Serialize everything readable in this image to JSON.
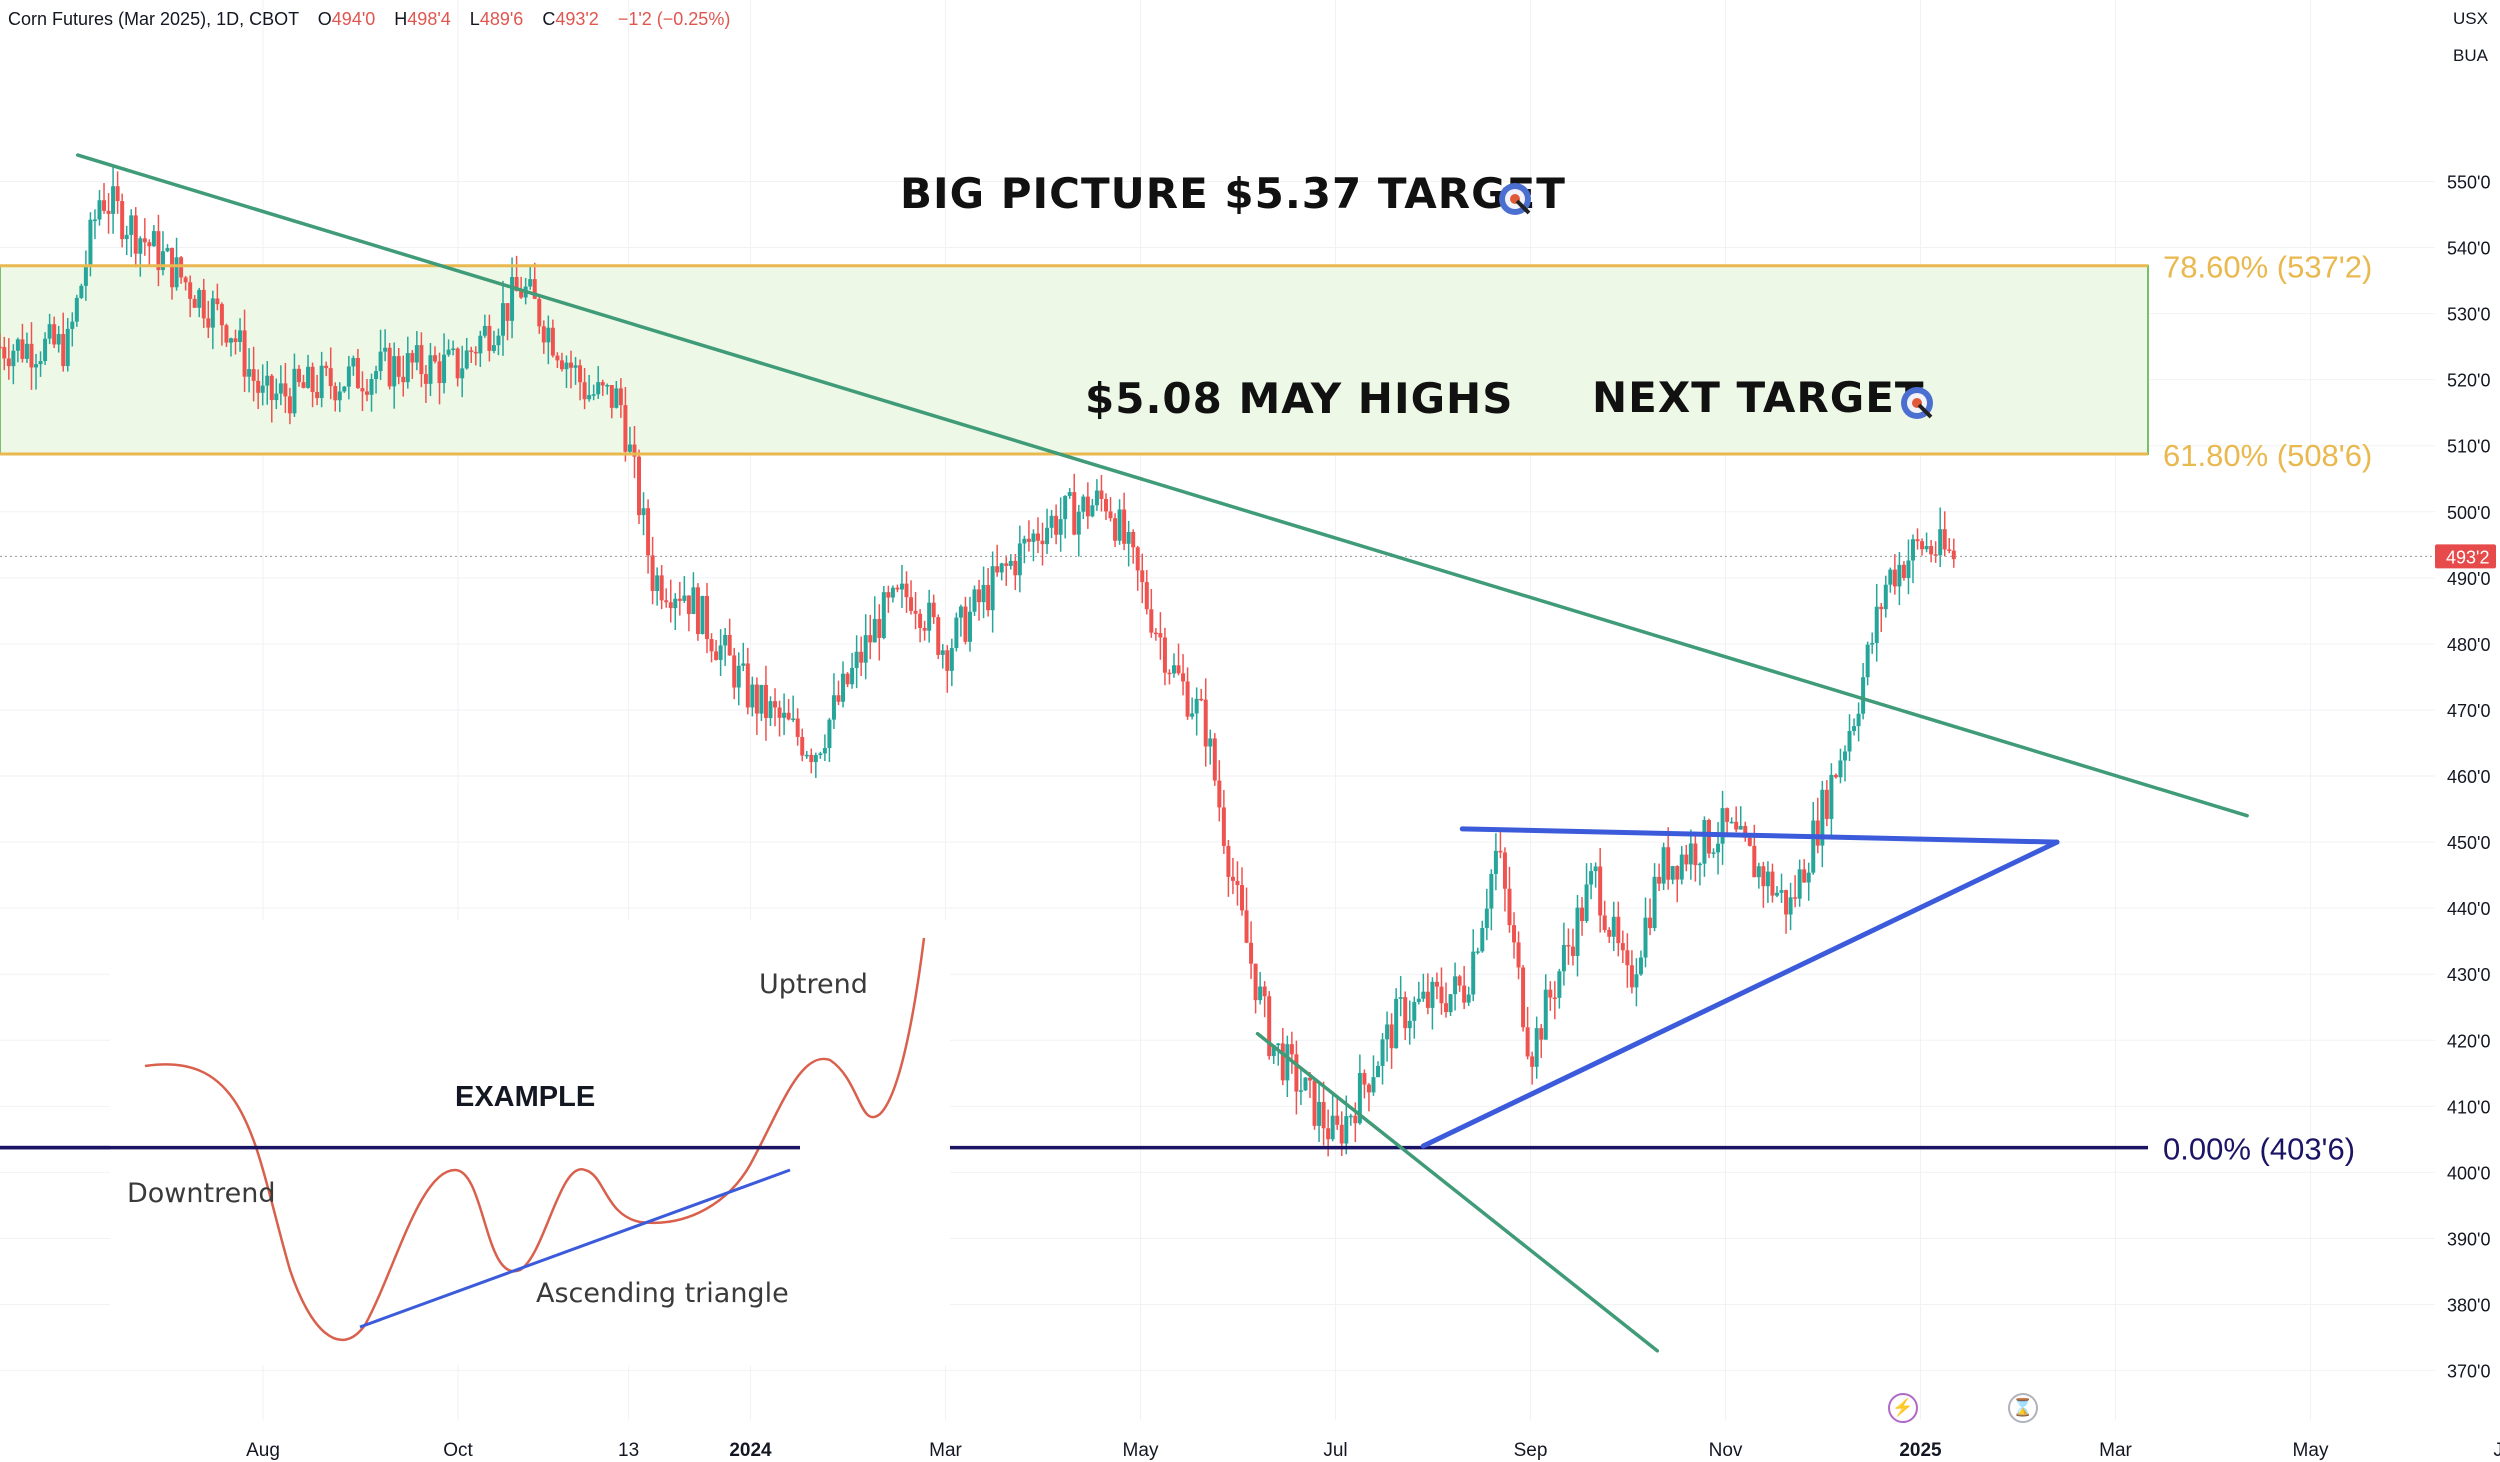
{
  "legend": {
    "symbol": "Corn Futures (Mar 2025), 1D, CBOT",
    "open_key": "O",
    "open": "494'0",
    "high_key": "H",
    "high": "498'4",
    "low_key": "L",
    "low": "489'6",
    "close_key": "C",
    "close": "493'2",
    "change": "−1'2 (−0.25%)"
  },
  "axis_units": [
    "USX",
    "BUA"
  ],
  "last_price_label": "493'2",
  "colors": {
    "up": "#26a69a",
    "down": "#ef5350",
    "trendline": "#3f9b78",
    "triangle": "#3b5bdb",
    "fib_gold": "#e9b84f",
    "fib_zero": "#1b1464",
    "zone_fill": "#eef8e6",
    "zone_border": "#7bbf6a",
    "example_curve": "#d9604c"
  },
  "chart_data": {
    "type": "candlestick",
    "y_axis": {
      "min": 366,
      "max": 573,
      "ticks": [
        "370'0",
        "380'0",
        "390'0",
        "400'0",
        "410'0",
        "420'0",
        "430'0",
        "440'0",
        "450'0",
        "460'0",
        "470'0",
        "480'0",
        "490'0",
        "500'0",
        "510'0",
        "520'0",
        "530'0",
        "540'0",
        "550'0"
      ]
    },
    "x_axis": {
      "ticks": [
        "Aug",
        "Oct",
        "13",
        "2024",
        "Mar",
        "May",
        "Jul",
        "Sep",
        "Nov",
        "2025",
        "Mar",
        "May",
        "Jul"
      ],
      "bold_ticks": [
        "2024",
        "2025"
      ]
    },
    "price_path": [
      {
        "t": "Jul 2023",
        "v": 525
      },
      {
        "t": "Jul 2023",
        "v": 548
      },
      {
        "t": "Aug 2023",
        "v": 528
      },
      {
        "t": "Sep 2023",
        "v": 517
      },
      {
        "t": "Oct 2023",
        "v": 522
      },
      {
        "t": "Nov 2023",
        "v": 534
      },
      {
        "t": "Nov 2023",
        "v": 522
      },
      {
        "t": "Dec 2023",
        "v": 518
      },
      {
        "t": "Dec 2023",
        "v": 517
      },
      {
        "t": "Jan 2024",
        "v": 490
      },
      {
        "t": "Jan 2024",
        "v": 488
      },
      {
        "t": "Feb 2024",
        "v": 464
      },
      {
        "t": "Feb 2024",
        "v": 472
      },
      {
        "t": "Mar 2024",
        "v": 484
      },
      {
        "t": "Mar 2024",
        "v": 488
      },
      {
        "t": "Apr 2024",
        "v": 479
      },
      {
        "t": "Apr 2024",
        "v": 486
      },
      {
        "t": "May 2024",
        "v": 502
      },
      {
        "t": "May 2024",
        "v": 498
      },
      {
        "t": "Jun 2024",
        "v": 476
      },
      {
        "t": "Jun 2024",
        "v": 468
      },
      {
        "t": "Jul 2024",
        "v": 440
      },
      {
        "t": "Jul 2024",
        "v": 420
      },
      {
        "t": "Aug 2024",
        "v": 424
      },
      {
        "t": "Aug 2024",
        "v": 405
      },
      {
        "t": "Sep 2024",
        "v": 428
      },
      {
        "t": "Sep 2024",
        "v": 449
      },
      {
        "t": "Oct 2024",
        "v": 418
      },
      {
        "t": "Oct 2024",
        "v": 432
      },
      {
        "t": "Oct 2024",
        "v": 445
      },
      {
        "t": "Nov 2024",
        "v": 428
      },
      {
        "t": "Nov 2024",
        "v": 446
      },
      {
        "t": "Dec 2024",
        "v": 440
      },
      {
        "t": "Dec 2024",
        "v": 452
      },
      {
        "t": "Jan 2025",
        "v": 470
      },
      {
        "t": "Jan 2025",
        "v": 490
      },
      {
        "t": "Feb 2025",
        "v": 495
      },
      {
        "t": "Feb 2025",
        "v": 493.25
      }
    ],
    "last_price": 493.25,
    "annotations": {
      "fib_levels": [
        {
          "label": "78.60% (537'2)",
          "value": 537.25
        },
        {
          "label": "61.80% (508'6)",
          "value": 508.75
        },
        {
          "label": "0.00% (403'6)",
          "value": 403.75
        }
      ],
      "target_zone": {
        "from": 508.75,
        "to": 537.25
      },
      "texts": [
        "BIG PICTURE $5.37 TARGET",
        "$5.08 MAY HIGHS",
        "NEXT TARGET"
      ],
      "trendlines": [
        {
          "name": "downtrend-resistance",
          "from": {
            "t": "Jul 2023",
            "v": 554
          },
          "to": {
            "t": "May 2025",
            "v": 454
          }
        },
        {
          "name": "decline-support",
          "from": {
            "t": "Jul 2024",
            "v": 421
          },
          "to": {
            "t": "Nov 2024",
            "v": 373
          }
        },
        {
          "name": "triangle-top",
          "from": {
            "t": "Sep 2024",
            "v": 452
          },
          "to": {
            "t": "Mar 2025",
            "v": 450
          }
        },
        {
          "name": "triangle-bottom",
          "from": {
            "t": "Aug 2024",
            "v": 404
          },
          "to": {
            "t": "Mar 2025",
            "v": 450
          }
        }
      ]
    },
    "example_inset": {
      "title": "EXAMPLE",
      "labels": [
        "Downtrend",
        "Uptrend",
        "Ascending triangle"
      ]
    }
  }
}
